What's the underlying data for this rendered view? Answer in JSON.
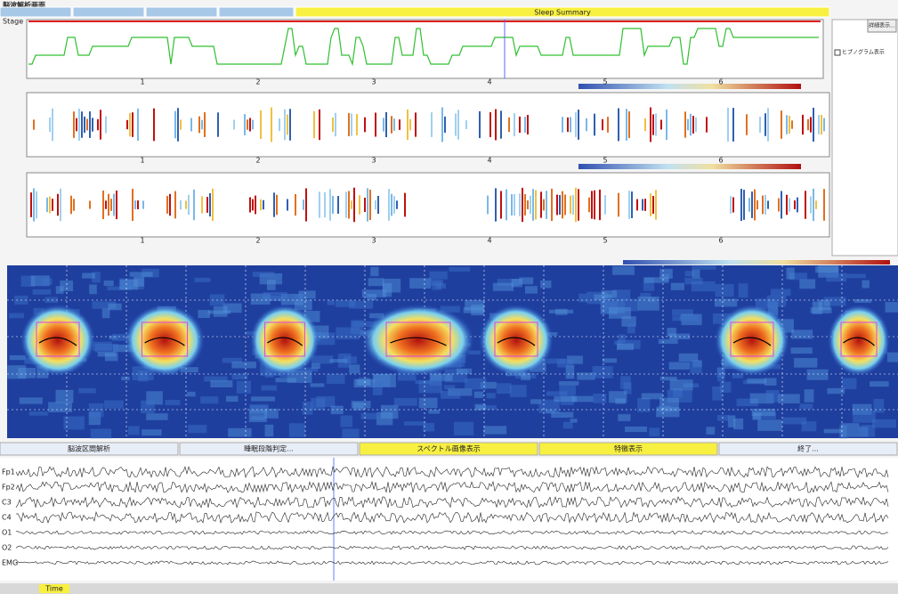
{
  "header": {
    "title": "脳波解析画面",
    "active_tab": "Sleep Summary"
  },
  "hypnogram": {
    "label": "Stage",
    "x_labels": [
      "1",
      "2",
      "3",
      "4",
      "5",
      "6"
    ]
  },
  "side_panel": {
    "detail_button": "詳細表示...",
    "hypnogram_check": "ヒプノグラム表示"
  },
  "buttons": [
    "脳波区間解析",
    "睡眠段階判定...",
    "スペクトル画像表示",
    "特徴表示",
    "終了..."
  ],
  "channels": [
    "Fp1",
    "Fp2",
    "C3",
    "C4",
    "O1",
    "O2",
    "EMG"
  ],
  "status": {
    "time_label": "Time"
  }
}
